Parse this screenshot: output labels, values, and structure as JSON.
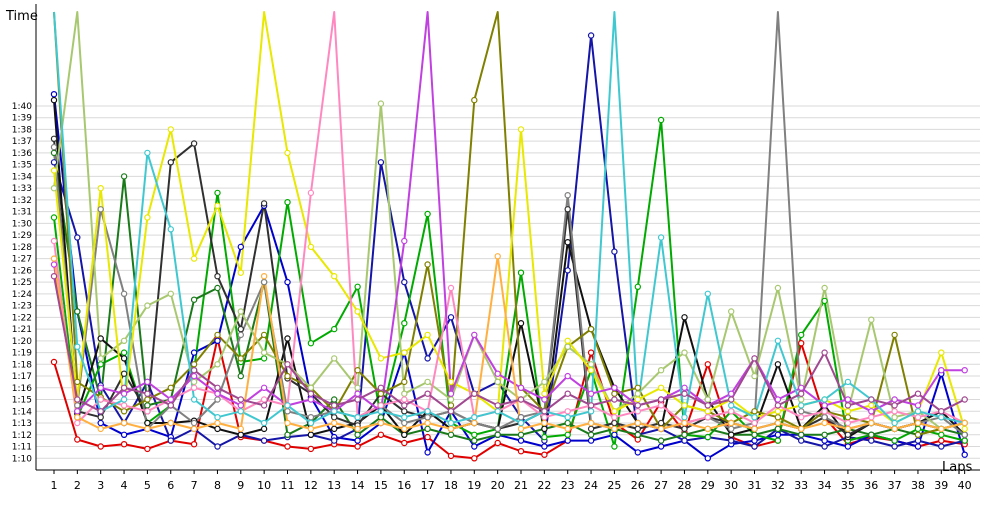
{
  "chart_data": {
    "type": "line",
    "title": "",
    "xlabel": "Laps",
    "ylabel": "Time",
    "x": [
      1,
      2,
      3,
      4,
      5,
      6,
      7,
      8,
      9,
      10,
      11,
      12,
      13,
      14,
      15,
      16,
      17,
      18,
      19,
      20,
      21,
      22,
      23,
      24,
      25,
      26,
      27,
      28,
      29,
      30,
      31,
      32,
      33,
      34,
      35,
      36,
      37,
      38,
      39,
      40
    ],
    "x_tick_labels": [
      "1",
      "2",
      "3",
      "4",
      "5",
      "6",
      "7",
      "8",
      "9",
      "10",
      "11",
      "12",
      "13",
      "14",
      "15",
      "16",
      "17",
      "18",
      "19",
      "20",
      "21",
      "22",
      "23",
      "24",
      "25",
      "26",
      "27",
      "28",
      "29",
      "30",
      "31",
      "32",
      "33",
      "34",
      "35",
      "36",
      "37",
      "38",
      "39",
      "40"
    ],
    "y_unit": "seconds",
    "ylim": [
      69,
      108
    ],
    "y_ticks": [
      70,
      71,
      72,
      73,
      74,
      75,
      76,
      77,
      78,
      79,
      80,
      81,
      82,
      83,
      84,
      85,
      86,
      87,
      88,
      89,
      90,
      91,
      92,
      93,
      94,
      95,
      96,
      97,
      98,
      99,
      100
    ],
    "y_tick_labels": [
      "1:10",
      "1:11",
      "1:12",
      "1:13",
      "1:14",
      "1:15",
      "1:16",
      "1:17",
      "1:18",
      "1:19",
      "1:20",
      "1:21",
      "1:22",
      "1:23",
      "1:24",
      "1:25",
      "1:26",
      "1:27",
      "1:28",
      "1:29",
      "1:30",
      "1:31",
      "1:32",
      "1:33",
      "1:34",
      "1:35",
      "1:36",
      "1:37",
      "1:38",
      "1:39",
      "1:40"
    ],
    "grid": true,
    "legend": "none",
    "marker": "open-circle",
    "series": [
      {
        "color": "#e00000",
        "values": [
          78.2,
          71.6,
          71.0,
          71.2,
          70.8,
          71.5,
          71.2,
          80.2,
          71.8,
          71.5,
          71.0,
          70.8,
          71.2,
          71.0,
          72.0,
          71.3,
          71.8,
          70.2,
          70.0,
          71.3,
          70.6,
          70.3,
          71.5,
          79.0,
          73.0,
          71.6,
          74.8,
          72.2,
          78.0,
          71.8,
          71.0,
          71.5,
          79.8,
          73.5,
          71.2,
          71.8,
          71.5,
          71.0,
          71.5,
          71.2
        ]
      },
      {
        "color": "#0000cc",
        "values": [
          101.0,
          82.5,
          73.0,
          72.0,
          72.5,
          71.8,
          79.0,
          80.0,
          88.0,
          91.5,
          85.0,
          75.2,
          71.8,
          71.5,
          73.0,
          79.0,
          70.5,
          74.0,
          71.0,
          72.0,
          71.5,
          71.0,
          71.5,
          71.5,
          72.0,
          70.5,
          71.0,
          71.5,
          70.0,
          71.2,
          71.5,
          72.0,
          72.0,
          71.5,
          71.0,
          72.0,
          71.5,
          71.0,
          77.2,
          70.3
        ]
      },
      {
        "color": "#1515a8",
        "values": [
          95.2,
          88.8,
          76.2,
          73.0,
          76.5,
          71.5,
          72.5,
          71.0,
          72.0,
          71.5,
          71.8,
          72.0,
          71.5,
          72.5,
          95.2,
          85.0,
          78.5,
          82.0,
          75.5,
          76.5,
          73.5,
          71.5,
          86.0,
          106.0,
          87.6,
          72.0,
          72.5,
          71.5,
          71.8,
          71.5,
          71.0,
          72.5,
          71.5,
          71.0,
          71.8,
          71.5,
          71.0,
          71.5,
          71.0,
          71.5
        ]
      },
      {
        "color": "#00aa00",
        "values": [
          90.5,
          73.5,
          78.0,
          79.0,
          73.0,
          74.5,
          77.5,
          92.6,
          78.2,
          78.5,
          91.8,
          79.8,
          81.0,
          84.6,
          73.5,
          81.5,
          90.8,
          73.0,
          72.0,
          72.5,
          85.8,
          71.8,
          72.0,
          77.5,
          71.0,
          84.6,
          98.8,
          72.0,
          71.8,
          74.0,
          72.0,
          71.5,
          80.5,
          83.4,
          71.5,
          72.0,
          71.5,
          72.5,
          72.0,
          71.5
        ]
      },
      {
        "color": "#1a7a1a",
        "values": [
          96.0,
          82.5,
          75.0,
          94.0,
          74.5,
          75.0,
          83.5,
          84.5,
          77.0,
          85.0,
          72.0,
          73.0,
          75.0,
          72.0,
          73.5,
          72.0,
          72.5,
          72.0,
          71.5,
          72.0,
          72.0,
          72.5,
          73.0,
          72.0,
          72.5,
          72.0,
          71.5,
          72.0,
          72.5,
          72.0,
          72.0,
          72.5,
          72.0,
          72.0,
          72.5,
          72.0,
          72.5,
          72.0,
          72.5,
          72.0
        ]
      },
      {
        "color": "#111111",
        "values": [
          100.5,
          73.8,
          80.2,
          78.5,
          73.0,
          73.0,
          73.2,
          72.5,
          72.0,
          72.5,
          80.2,
          72.0,
          72.5,
          73.0,
          74.5,
          72.0,
          74.0,
          72.5,
          73.0,
          72.5,
          81.5,
          72.5,
          88.4,
          81.0,
          76.0,
          73.0,
          72.5,
          82.0,
          75.0,
          72.0,
          72.5,
          78.0,
          72.5,
          74.5,
          71.8,
          73.0,
          72.5,
          73.0,
          74.0,
          72.0
        ]
      },
      {
        "color": "#303030",
        "values": [
          97.2,
          74.0,
          73.5,
          77.2,
          74.0,
          95.2,
          96.8,
          85.5,
          81.0,
          91.7,
          76.8,
          75.5,
          73.5,
          72.8,
          75.5,
          74.0,
          73.5,
          74.0,
          73.0,
          72.5,
          73.0,
          74.0,
          91.2,
          72.5,
          73.0,
          72.5,
          73.0,
          72.5,
          73.5,
          73.0,
          72.5,
          73.0,
          72.5,
          73.5,
          72.0,
          73.0,
          72.5,
          73.0,
          72.5,
          73.0
        ]
      },
      {
        "color": "#808080",
        "values": [
          96.5,
          74.5,
          91.2,
          84.0,
          72.5,
          74.5,
          73.0,
          75.0,
          80.5,
          85.0,
          74.0,
          73.5,
          74.0,
          73.5,
          74.5,
          73.0,
          73.5,
          74.0,
          73.0,
          72.5,
          73.5,
          74.0,
          92.4,
          73.0,
          72.5,
          73.0,
          72.5,
          73.0,
          73.5,
          72.5,
          73.0,
          108.0,
          74.0,
          73.5,
          72.5,
          73.0,
          72.5,
          73.0,
          73.5,
          72.0
        ]
      },
      {
        "color": "#808000",
        "values": [
          108.0,
          76.5,
          75.2,
          74.0,
          75.0,
          76.0,
          78.0,
          80.5,
          78.5,
          80.5,
          77.0,
          76.0,
          74.0,
          77.5,
          75.5,
          76.5,
          86.5,
          74.5,
          100.5,
          108.0,
          76.0,
          74.0,
          79.5,
          81.0,
          75.5,
          76.0,
          72.5,
          74.5,
          74.0,
          73.0,
          74.0,
          73.5,
          72.5,
          74.0,
          73.5,
          73.0,
          80.5,
          72.0,
          72.5,
          73.0
        ]
      },
      {
        "color": "#a8c870",
        "values": [
          93.0,
          108.0,
          78.5,
          80.0,
          83.0,
          84.0,
          76.5,
          78.0,
          82.5,
          79.0,
          78.0,
          76.0,
          78.5,
          76.0,
          100.2,
          75.5,
          76.5,
          75.0,
          80.5,
          76.5,
          75.0,
          76.5,
          79.5,
          78.0,
          74.0,
          75.5,
          77.5,
          79.0,
          75.0,
          82.5,
          77.0,
          84.5,
          75.0,
          84.5,
          74.0,
          81.8,
          73.5,
          74.0,
          72.5,
          73.0
        ]
      },
      {
        "color": "#e8e800",
        "values": [
          94.5,
          75.0,
          93.0,
          74.5,
          90.5,
          98.0,
          87.0,
          91.5,
          85.8,
          108.0,
          96.0,
          88.0,
          85.5,
          82.5,
          78.5,
          79.0,
          80.5,
          76.5,
          75.5,
          74.0,
          98.0,
          75.5,
          80.0,
          77.5,
          74.0,
          75.0,
          76.0,
          74.5,
          74.0,
          75.0,
          73.5,
          74.0,
          74.5,
          75.0,
          74.0,
          74.5,
          73.0,
          74.0,
          79.0,
          72.5
        ]
      },
      {
        "color": "#ff88c0",
        "values": [
          88.5,
          73.0,
          75.0,
          74.5,
          74.0,
          75.0,
          76.0,
          75.5,
          74.0,
          75.0,
          74.5,
          92.6,
          108.0,
          73.5,
          74.5,
          75.0,
          74.0,
          84.5,
          73.5,
          74.0,
          75.0,
          73.5,
          74.0,
          74.5,
          73.5,
          74.0,
          74.5,
          73.0,
          73.5,
          74.0,
          73.0,
          74.5,
          73.5,
          74.0,
          73.0,
          73.5,
          74.0,
          73.5,
          74.0,
          73.0
        ]
      },
      {
        "color": "#c040e0",
        "values": [
          86.5,
          74.0,
          76.0,
          75.5,
          76.5,
          75.0,
          77.0,
          75.5,
          74.5,
          76.0,
          74.5,
          75.0,
          74.0,
          75.5,
          74.0,
          88.5,
          108.0,
          75.5,
          80.5,
          77.2,
          76.0,
          75.0,
          77.0,
          75.5,
          76.0,
          74.5,
          75.0,
          76.0,
          74.5,
          75.5,
          78.5,
          75.0,
          76.0,
          74.5,
          75.0,
          74.0,
          75.0,
          74.5,
          77.5,
          77.5
        ]
      },
      {
        "color": "#40c8d0",
        "values": [
          108.0,
          79.5,
          74.0,
          75.0,
          96.0,
          89.5,
          75.0,
          73.5,
          74.0,
          73.0,
          74.5,
          73.0,
          74.0,
          73.5,
          74.0,
          73.5,
          74.0,
          73.0,
          73.5,
          74.0,
          73.0,
          74.0,
          73.5,
          74.0,
          108.0,
          74.5,
          88.8,
          73.5,
          84.0,
          74.5,
          73.5,
          80.0,
          74.5,
          75.0,
          76.5,
          75.0,
          73.0,
          74.0,
          73.5,
          73.0
        ]
      },
      {
        "color": "#ffb040",
        "values": [
          87.0,
          73.5,
          72.5,
          73.0,
          72.5,
          73.0,
          72.5,
          73.0,
          72.5,
          85.5,
          73.0,
          72.5,
          73.0,
          72.5,
          73.0,
          72.5,
          73.0,
          72.5,
          73.0,
          87.2,
          72.5,
          73.0,
          72.5,
          73.0,
          72.5,
          73.0,
          72.5,
          73.0,
          72.5,
          73.0,
          72.5,
          73.0,
          72.5,
          73.0,
          72.5,
          73.0,
          72.5,
          73.0,
          72.5,
          73.0
        ]
      },
      {
        "color": "#a04890",
        "values": [
          85.5,
          75.0,
          74.0,
          76.0,
          75.5,
          74.5,
          77.5,
          76.0,
          75.0,
          74.5,
          78.0,
          75.5,
          74.5,
          75.0,
          76.0,
          74.5,
          75.5,
          74.0,
          75.5,
          74.5,
          75.0,
          74.0,
          75.5,
          74.5,
          75.0,
          74.5,
          75.0,
          75.5,
          74.5,
          75.0,
          78.5,
          74.5,
          75.5,
          79.0,
          74.5,
          75.0,
          74.5,
          75.5,
          74.0,
          75.0
        ]
      }
    ]
  }
}
